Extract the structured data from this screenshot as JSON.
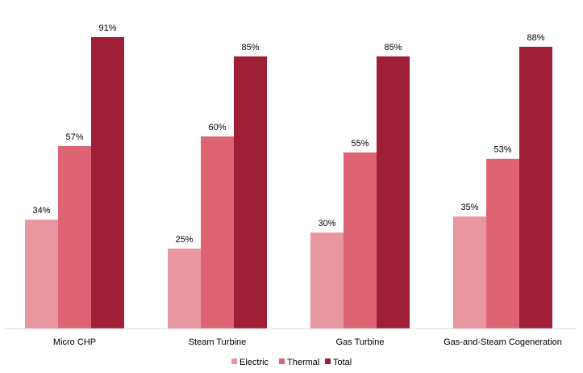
{
  "chart_data": {
    "type": "bar",
    "categories": [
      "Micro CHP",
      "Steam Turbine",
      "Gas Turbine",
      "Gas-and-Steam Cogeneration"
    ],
    "series": [
      {
        "name": "Electric",
        "values": [
          34,
          25,
          30,
          35
        ],
        "color": "#e8969f"
      },
      {
        "name": "Thermal",
        "values": [
          57,
          60,
          55,
          53
        ],
        "color": "#de6373"
      },
      {
        "name": "Total",
        "values": [
          91,
          85,
          85,
          88
        ],
        "color": "#9e1f36"
      }
    ],
    "value_suffix": "%",
    "ylim": [
      0,
      100
    ],
    "grid": false,
    "legend_position": "bottom"
  }
}
